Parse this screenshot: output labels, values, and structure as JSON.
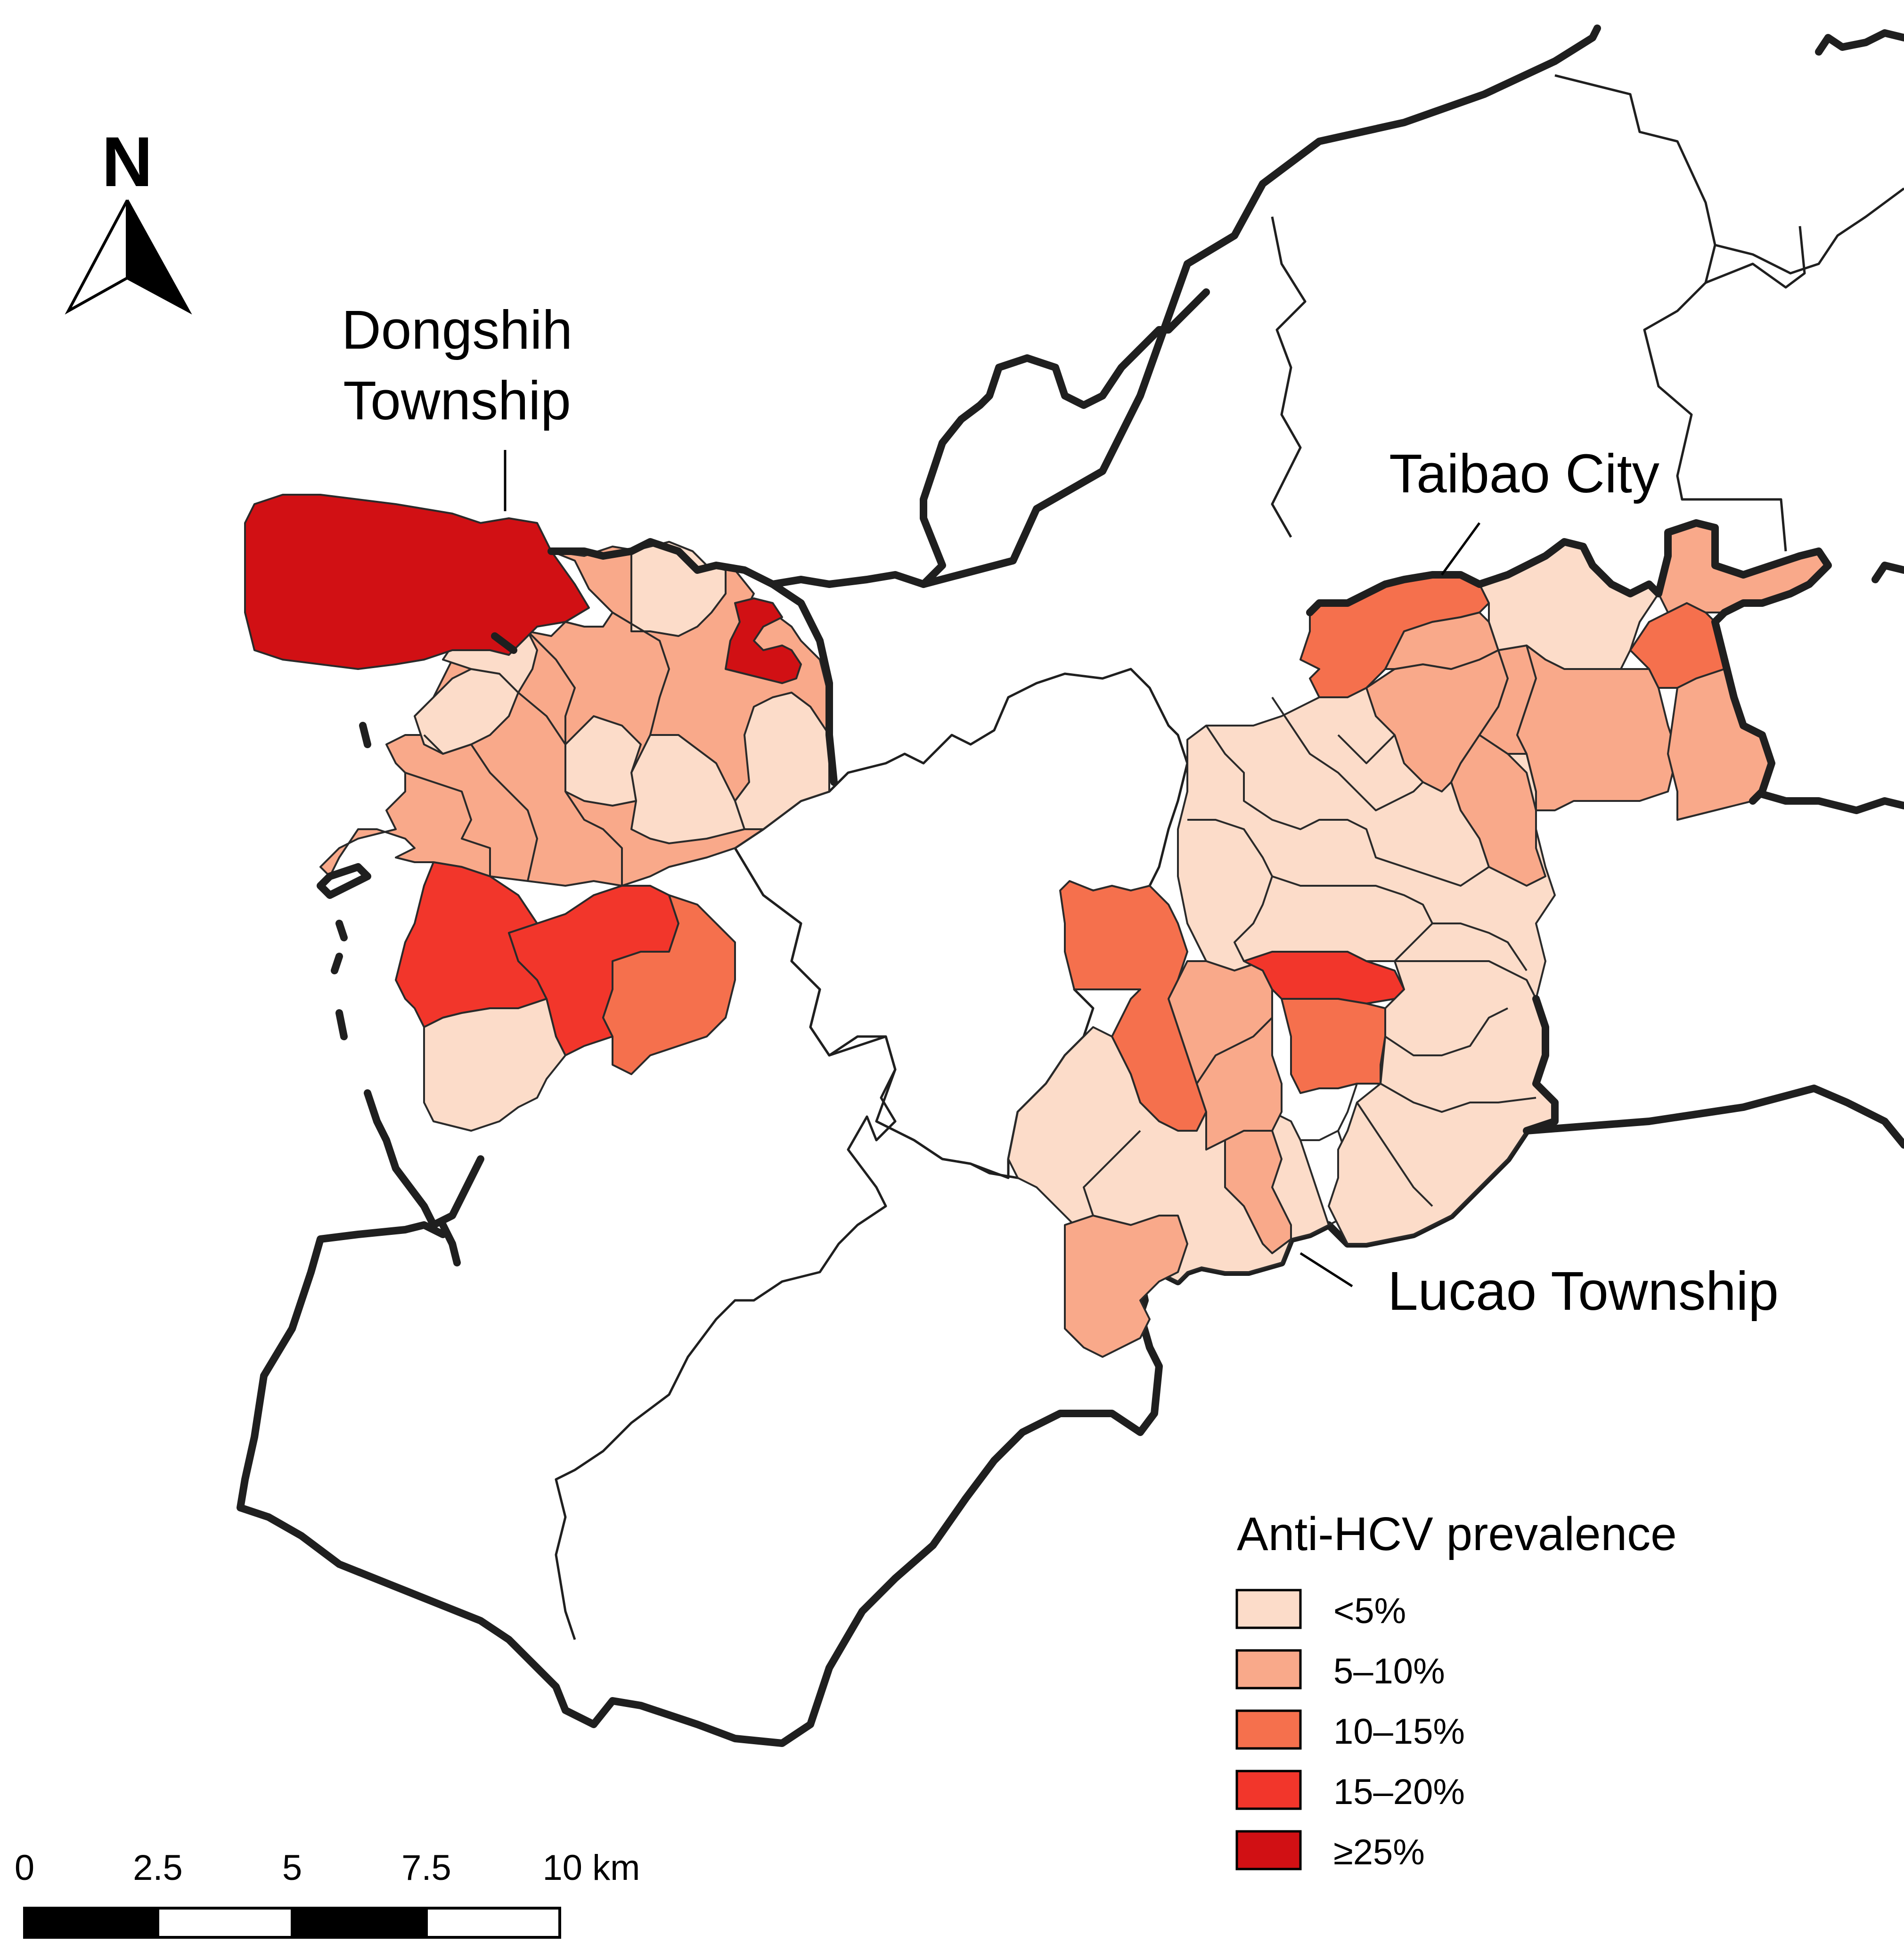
{
  "north_arrow": {
    "label": "N"
  },
  "places": {
    "dongshih": {
      "line1": "Dongshih",
      "line2": "Township"
    },
    "taibao": {
      "label": "Taibao City"
    },
    "lucao": {
      "label": "Lucao Township"
    }
  },
  "legend": {
    "title": "Anti-HCV prevalence",
    "items": [
      {
        "label": "<5%",
        "color": "#fcdcc9"
      },
      {
        "label": "5–10%",
        "color": "#f9a98a"
      },
      {
        "label": "10–15%",
        "color": "#f5704d"
      },
      {
        "label": "15–20%",
        "color": "#f2362b"
      },
      {
        "label": "≥25%",
        "color": "#d11014"
      }
    ]
  },
  "scale_bar": {
    "ticks": [
      "0",
      "2.5",
      "5",
      "7.5",
      "10 km"
    ]
  }
}
